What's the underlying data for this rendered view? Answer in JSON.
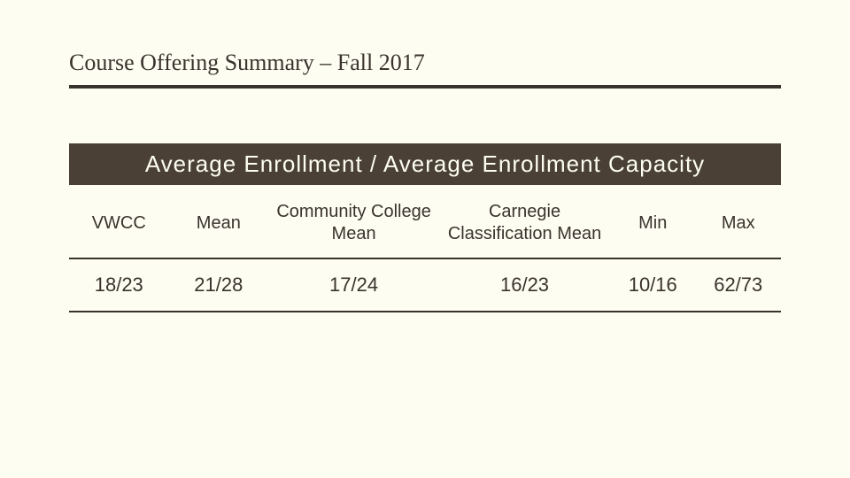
{
  "page": {
    "title": "Course Offering Summary – Fall 2017",
    "banner": "Average Enrollment / Average Enrollment Capacity"
  },
  "table": {
    "type": "table",
    "background_color": "#fdfdf2",
    "banner_bg": "#4a4036",
    "banner_fg": "#fdfdf2",
    "rule_color": "#3a332d",
    "header_fontsize": 20,
    "cell_fontsize": 22,
    "columns": [
      {
        "label": "VWCC",
        "width": "14%"
      },
      {
        "label": "Mean",
        "width": "14%"
      },
      {
        "label": "Community College Mean",
        "width": "24%"
      },
      {
        "label": "Carnegie Classification Mean",
        "width": "24%"
      },
      {
        "label": "Min",
        "width": "12%"
      },
      {
        "label": "Max",
        "width": "12%"
      }
    ],
    "rows": [
      [
        "18/23",
        "21/28",
        "17/24",
        "16/23",
        "10/16",
        "62/73"
      ]
    ]
  }
}
